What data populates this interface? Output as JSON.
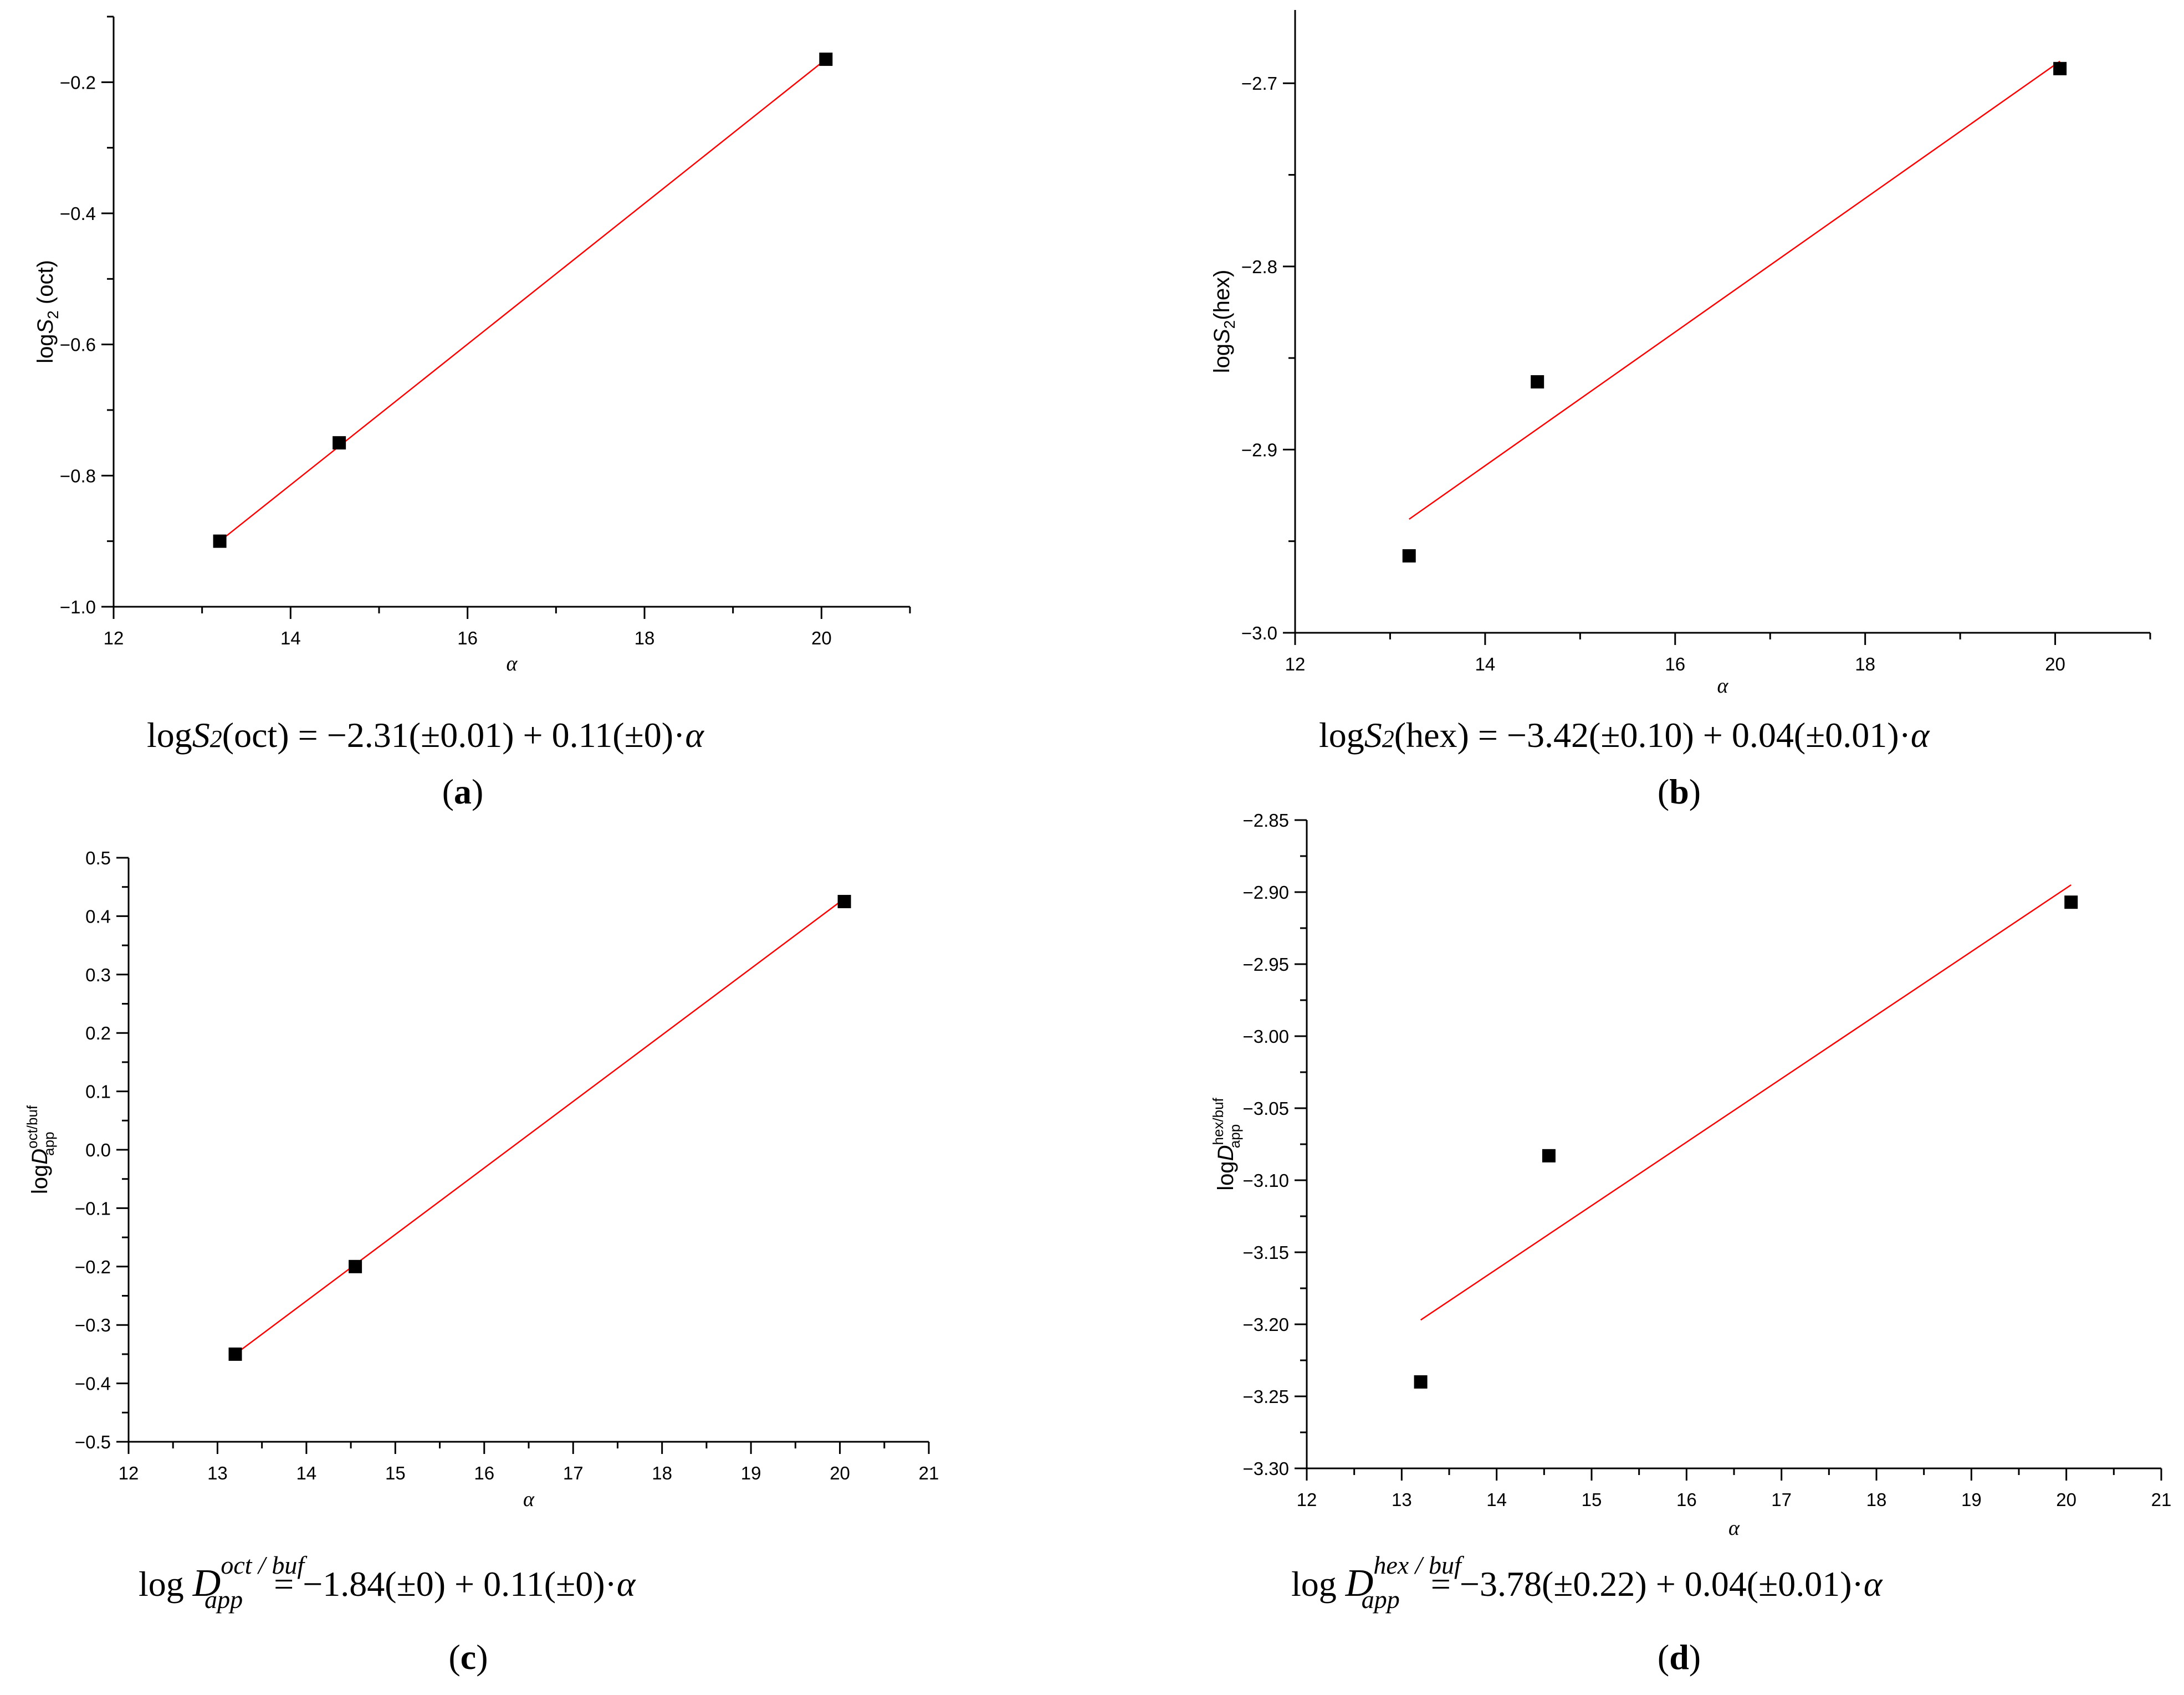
{
  "figure": {
    "panel_count": 4
  },
  "colors": {
    "fit_line": "#ff0000",
    "marker": "#000000",
    "axis": "#000000"
  },
  "chart_data": [
    {
      "id": "a",
      "type": "scatter",
      "panel_label": "a",
      "xlabel": "α",
      "ylabel_parts": {
        "log": "log",
        "var": "S",
        "sub": "2",
        "suffix": " (oct)",
        "sup": ""
      },
      "xlim": [
        12,
        21
      ],
      "ylim": [
        -1.0,
        -0.1
      ],
      "xticks": [
        12,
        14,
        16,
        18,
        20
      ],
      "xtick_labels": [
        "12",
        "14",
        "16",
        "18",
        "20"
      ],
      "yticks": [
        -1.0,
        -0.8,
        -0.6,
        -0.4,
        -0.2
      ],
      "ytick_labels": [
        "−1.0",
        "−0.8",
        "−0.6",
        "−0.4",
        "−0.2"
      ],
      "points": [
        {
          "x": 13.2,
          "y": -0.9
        },
        {
          "x": 14.55,
          "y": -0.75
        },
        {
          "x": 20.05,
          "y": -0.165
        }
      ],
      "fit": {
        "x": [
          13.2,
          20.05
        ],
        "y": [
          -0.9,
          -0.165
        ]
      },
      "equation": {
        "left": "log",
        "var": "S",
        "sub": "2",
        "rest": "(oct) = −2.31(±0.01) + 0.11(±0)·",
        "alpha": "α"
      }
    },
    {
      "id": "b",
      "type": "scatter",
      "panel_label": "b",
      "xlabel": "α",
      "ylabel_parts": {
        "log": "log",
        "var": "S",
        "sub": "2",
        "suffix": "(hex)",
        "sup": ""
      },
      "xlim": [
        12,
        21
      ],
      "ylim": [
        -3.0,
        -2.66
      ],
      "xticks": [
        12,
        14,
        16,
        18,
        20
      ],
      "xtick_labels": [
        "12",
        "14",
        "16",
        "18",
        "20"
      ],
      "yticks": [
        -3.0,
        -2.9,
        -2.8,
        -2.7
      ],
      "ytick_labels": [
        "−3.0",
        "−2.9",
        "−2.8",
        "−2.7"
      ],
      "points": [
        {
          "x": 13.2,
          "y": -2.958
        },
        {
          "x": 14.55,
          "y": -2.863
        },
        {
          "x": 20.05,
          "y": -2.692
        }
      ],
      "fit": {
        "x": [
          13.2,
          20.05
        ],
        "y": [
          -2.938,
          -2.688
        ]
      },
      "equation": {
        "left": "log",
        "var": "S",
        "sub": "2",
        "rest": "(hex) = −3.42(±0.10) + 0.04(±0.01)·",
        "alpha": "α"
      }
    },
    {
      "id": "c",
      "type": "scatter",
      "panel_label": "c",
      "xlabel": "α",
      "ylabel_parts": {
        "log": "log",
        "var": "D",
        "sub": "app",
        "suffix": "",
        "sup": "oct/buf"
      },
      "xlim": [
        12,
        21
      ],
      "ylim": [
        -0.5,
        0.5
      ],
      "xticks": [
        12,
        13,
        14,
        15,
        16,
        17,
        18,
        19,
        20,
        21
      ],
      "xtick_labels": [
        "12",
        "13",
        "14",
        "15",
        "16",
        "17",
        "18",
        "19",
        "20",
        "21"
      ],
      "yticks": [
        -0.5,
        -0.4,
        -0.3,
        -0.2,
        -0.1,
        0.0,
        0.1,
        0.2,
        0.3,
        0.4,
        0.5
      ],
      "ytick_labels": [
        "−0.5",
        "−0.4",
        "−0.3",
        "−0.2",
        "−0.1",
        "0.0",
        "0.1",
        "0.2",
        "0.3",
        "0.4",
        "0.5"
      ],
      "points": [
        {
          "x": 13.2,
          "y": -0.35
        },
        {
          "x": 14.55,
          "y": -0.2
        },
        {
          "x": 20.05,
          "y": 0.425
        }
      ],
      "fit": {
        "x": [
          13.2,
          20.05
        ],
        "y": [
          -0.35,
          0.43
        ]
      },
      "equation": {
        "left": "log ",
        "var": "D",
        "sub": "app",
        "sup": "oct / buf",
        "rest": " = −1.84(±0) + 0.11(±0)·",
        "alpha": "α"
      }
    },
    {
      "id": "d",
      "type": "scatter",
      "panel_label": "d",
      "xlabel": "α",
      "ylabel_parts": {
        "log": "log",
        "var": "D",
        "sub": "app",
        "suffix": "",
        "sup": "hex/buf"
      },
      "xlim": [
        12,
        21
      ],
      "ylim": [
        -3.3,
        -2.85
      ],
      "xticks": [
        12,
        13,
        14,
        15,
        16,
        17,
        18,
        19,
        20,
        21
      ],
      "xtick_labels": [
        "12",
        "13",
        "14",
        "15",
        "16",
        "17",
        "18",
        "19",
        "20",
        "21"
      ],
      "yticks": [
        -3.3,
        -3.25,
        -3.2,
        -3.15,
        -3.1,
        -3.05,
        -3.0,
        -2.95,
        -2.9,
        -2.85
      ],
      "ytick_labels": [
        "−3.30",
        "−3.25",
        "−3.20",
        "−3.15",
        "−3.10",
        "−3.05",
        "−3.00",
        "−2.95",
        "−2.90",
        "−2.85"
      ],
      "points": [
        {
          "x": 13.2,
          "y": -3.24
        },
        {
          "x": 14.55,
          "y": -3.083
        },
        {
          "x": 20.05,
          "y": -2.907
        }
      ],
      "fit": {
        "x": [
          13.2,
          20.05
        ],
        "y": [
          -3.197,
          -2.895
        ]
      },
      "equation": {
        "left": "log ",
        "var": "D",
        "sub": "app",
        "sup": "hex / buf",
        "rest": " = −3.78(±0.22) + 0.04(±0.01)·",
        "alpha": "α"
      }
    }
  ]
}
